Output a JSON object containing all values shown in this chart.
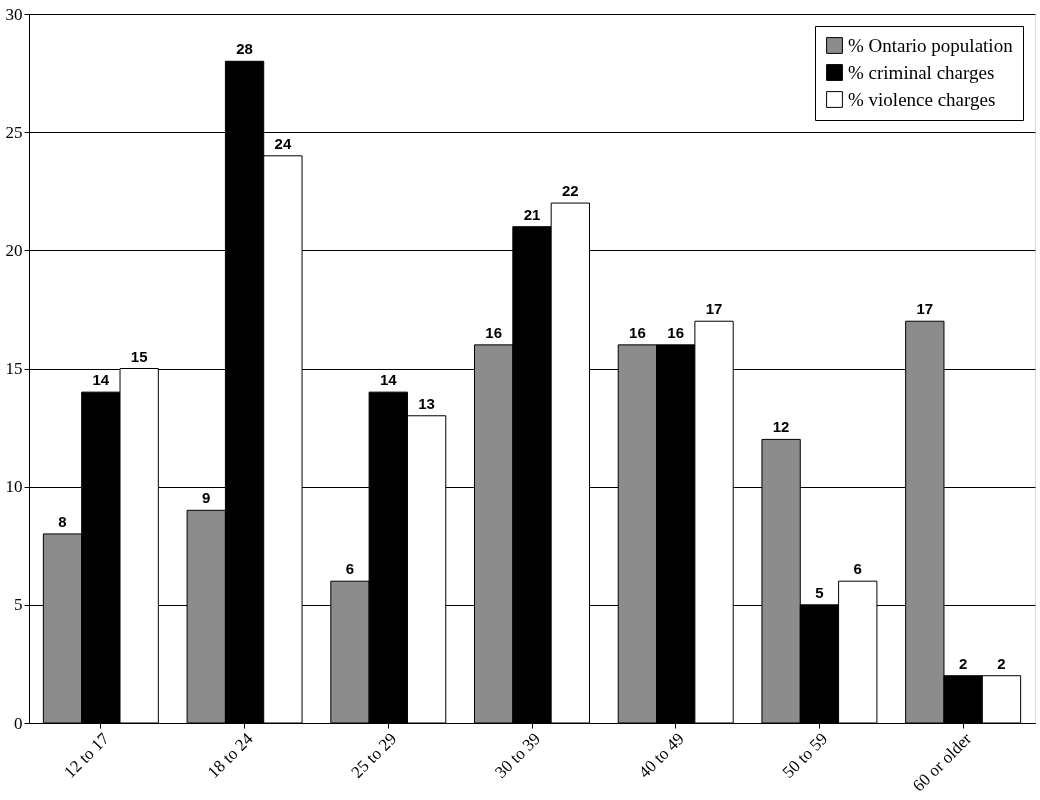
{
  "chart_data": {
    "type": "bar",
    "categories": [
      "12 to 17",
      "18 to 24",
      "25  to 29",
      "30 to 39",
      "40 to 49",
      "50 to 59",
      "60 or older"
    ],
    "series": [
      {
        "name": "% Ontario population",
        "color": "#8c8c8c",
        "values": [
          8,
          9,
          6,
          16,
          16,
          12,
          17
        ]
      },
      {
        "name": "% criminal charges",
        "color": "#000000",
        "values": [
          14,
          28,
          14,
          21,
          16,
          5,
          2
        ]
      },
      {
        "name": "% violence charges",
        "color": "#ffffff",
        "values": [
          15,
          24,
          13,
          22,
          17,
          6,
          2
        ]
      }
    ],
    "ylim": [
      0,
      30
    ],
    "yticks": [
      0,
      5,
      10,
      15,
      20,
      25,
      30
    ],
    "grid": "y",
    "legend": "top right",
    "data_labels": true
  }
}
